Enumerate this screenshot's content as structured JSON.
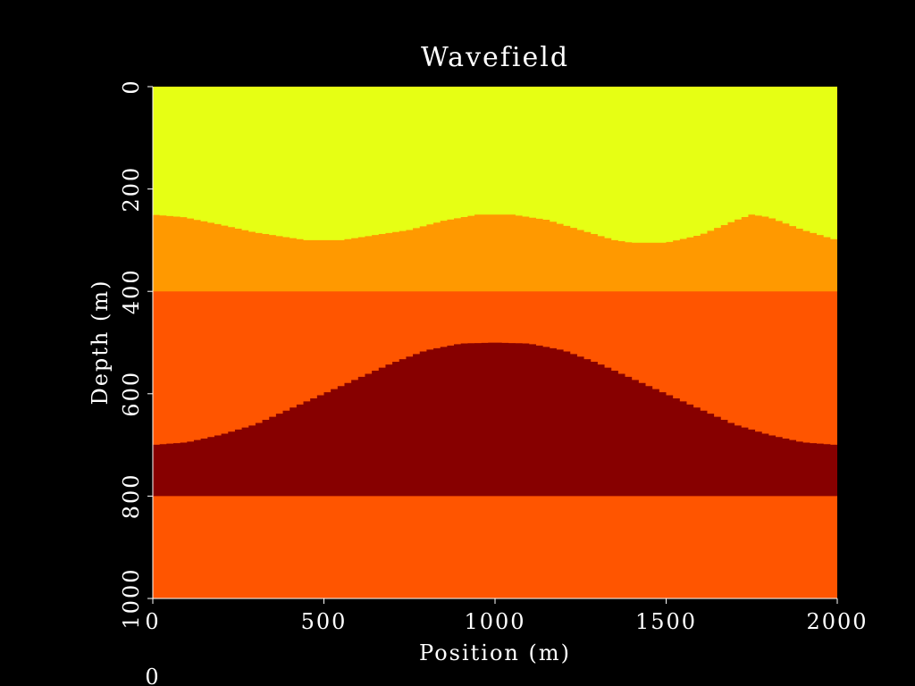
{
  "chart_data": {
    "type": "heatmap",
    "title": "Wavefield",
    "xlabel": "Position (m)",
    "ylabel": "Depth (m)",
    "xlim": [
      0,
      2000
    ],
    "ylim": [
      0,
      1000
    ],
    "y_inverted": true,
    "x_ticks": [
      0,
      500,
      1000,
      1500,
      2000
    ],
    "y_ticks": [
      0,
      200,
      400,
      600,
      800,
      1000
    ],
    "footer_label": "0",
    "grid": false,
    "legend": "none",
    "background": "#000000",
    "layers": [
      {
        "color": "#e6ff14",
        "top": [
          [
            0,
            0
          ],
          [
            2000,
            0
          ]
        ]
      },
      {
        "color": "#ff9900",
        "top": [
          [
            0,
            250
          ],
          [
            90,
            255
          ],
          [
            200,
            270
          ],
          [
            300,
            285
          ],
          [
            450,
            300
          ],
          [
            550,
            300
          ],
          [
            650,
            290
          ],
          [
            750,
            280
          ],
          [
            850,
            262
          ],
          [
            950,
            250
          ],
          [
            1050,
            250
          ],
          [
            1150,
            260
          ],
          [
            1250,
            280
          ],
          [
            1350,
            300
          ],
          [
            1400,
            305
          ],
          [
            1500,
            305
          ],
          [
            1600,
            290
          ],
          [
            1700,
            262
          ],
          [
            1750,
            250
          ],
          [
            1800,
            255
          ],
          [
            1900,
            280
          ],
          [
            2000,
            300
          ]
        ]
      },
      {
        "color": "#ff5500",
        "top": [
          [
            0,
            400
          ],
          [
            2000,
            400
          ]
        ]
      },
      {
        "color": "#870000",
        "top": [
          [
            0,
            700
          ],
          [
            100,
            695
          ],
          [
            200,
            680
          ],
          [
            300,
            660
          ],
          [
            400,
            630
          ],
          [
            500,
            600
          ],
          [
            600,
            570
          ],
          [
            700,
            540
          ],
          [
            800,
            515
          ],
          [
            900,
            502
          ],
          [
            1000,
            500
          ],
          [
            1100,
            502
          ],
          [
            1200,
            515
          ],
          [
            1300,
            540
          ],
          [
            1400,
            570
          ],
          [
            1500,
            600
          ],
          [
            1600,
            630
          ],
          [
            1700,
            660
          ],
          [
            1800,
            680
          ],
          [
            1900,
            695
          ],
          [
            2000,
            700
          ]
        ]
      },
      {
        "color": "#ff5500",
        "top": [
          [
            0,
            800
          ],
          [
            2000,
            800
          ]
        ]
      }
    ]
  }
}
